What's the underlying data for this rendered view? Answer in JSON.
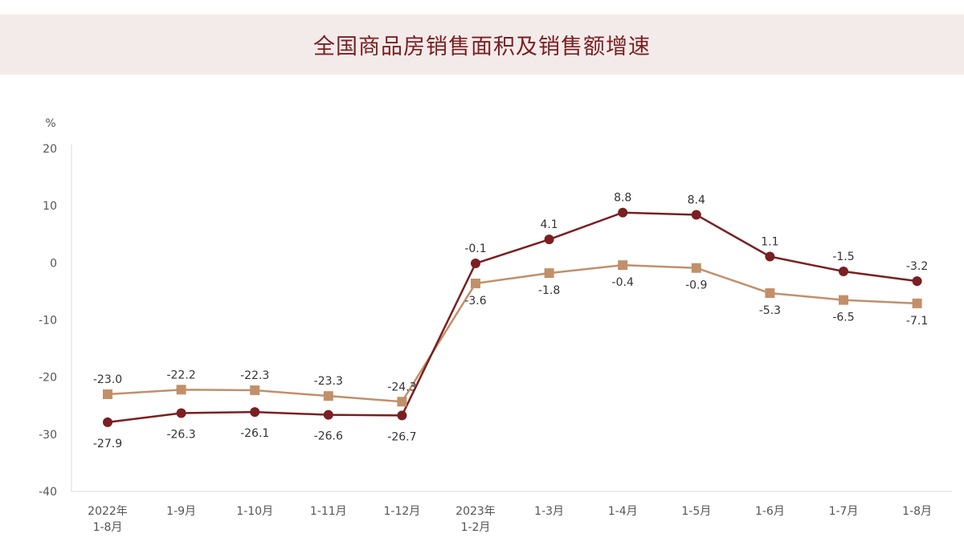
{
  "title": "全国商品房销售面积及销售额增速",
  "chart_data": {
    "type": "line",
    "title": "全国商品房销售面积及销售额增速",
    "ylabel": "%",
    "ylim": [
      -40,
      20
    ],
    "yticks": [
      "20",
      "10",
      "0",
      "-10",
      "-20",
      "-30",
      "-40"
    ],
    "categories": [
      [
        "2022年",
        "1-8月"
      ],
      [
        "1-9月"
      ],
      [
        "1-10月"
      ],
      [
        "1-11月"
      ],
      [
        "1-12月"
      ],
      [
        "2023年",
        "1-2月"
      ],
      [
        "1-3月"
      ],
      [
        "1-4月"
      ],
      [
        "1-5月"
      ],
      [
        "1-6月"
      ],
      [
        "1-7月"
      ],
      [
        "1-8月"
      ]
    ],
    "series": [
      {
        "values": [
          -23.0,
          -22.2,
          -22.3,
          -23.3,
          -24.3,
          -3.6,
          -1.8,
          -0.4,
          -0.9,
          -5.3,
          -6.5,
          -7.1
        ],
        "labels": [
          "-23.0",
          "-22.2",
          "-22.3",
          "-23.3",
          "-24.3",
          "-3.6",
          "-1.8",
          "-0.4",
          "-0.9",
          "-5.3",
          "-6.5",
          "-7.1"
        ],
        "color": "#c1906a",
        "marker": "square"
      },
      {
        "values": [
          -27.9,
          -26.3,
          -26.1,
          -26.6,
          -26.7,
          -0.1,
          4.1,
          8.8,
          8.4,
          1.1,
          -1.5,
          -3.2
        ],
        "labels": [
          "-27.9",
          "-26.3",
          "-26.1",
          "-26.6",
          "-26.7",
          "-0.1",
          "4.1",
          "8.8",
          "8.4",
          "1.1",
          "-1.5",
          "-3.2"
        ],
        "color": "#7a1f22",
        "marker": "circle"
      }
    ],
    "grid": false,
    "legend": "none"
  }
}
